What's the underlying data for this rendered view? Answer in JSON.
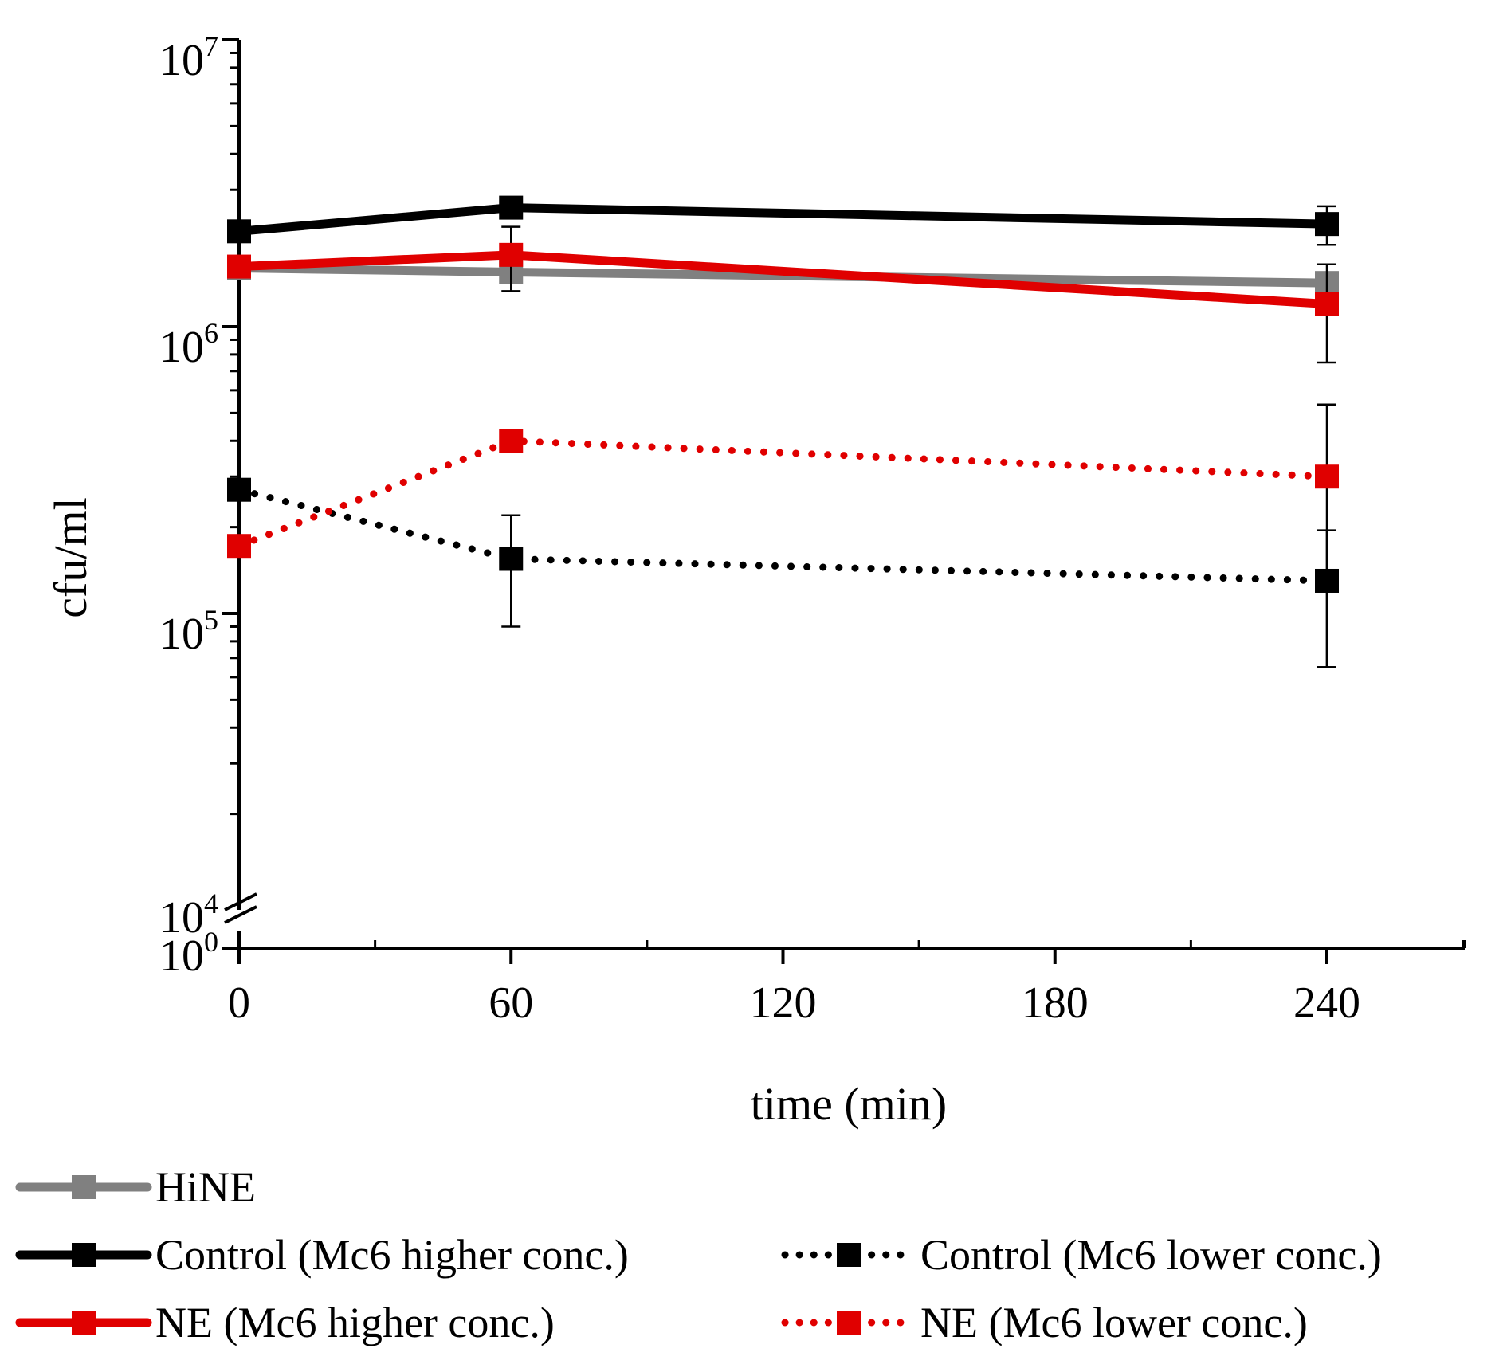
{
  "chart_data": {
    "type": "line",
    "title": "",
    "xlabel": "time (min)",
    "ylabel": "cfu/ml",
    "yscale": "log",
    "xlim": [
      0,
      270
    ],
    "ylim": [
      10000,
      10000000
    ],
    "axis_break": {
      "lower_tick": "10^0",
      "upper_tick": "10^4"
    },
    "x_ticks": [
      0,
      60,
      120,
      180,
      240
    ],
    "x_tick_labels": [
      "0",
      "60",
      "120",
      "180",
      "240"
    ],
    "y_ticks": [
      {
        "value": 100000,
        "base": "10",
        "exp": "5"
      },
      {
        "value": 1000000,
        "base": "10",
        "exp": "6"
      },
      {
        "value": 10000000,
        "base": "10",
        "exp": "7"
      }
    ],
    "y_break_labels": [
      {
        "base": "10",
        "exp": "4"
      },
      {
        "base": "10",
        "exp": "0"
      }
    ],
    "x": [
      0,
      60,
      240
    ],
    "series": [
      {
        "name": "HiNE",
        "color": "#808080",
        "style": "solid",
        "values": [
          1600000,
          1550000,
          1420000
        ],
        "err": [
          null,
          80000,
          60000
        ]
      },
      {
        "name": "Control (Mc6 higher conc.)",
        "color": "#000000",
        "style": "solid",
        "values": [
          2150000,
          2600000,
          2280000
        ],
        "err": [
          null,
          130000,
          350000
        ]
      },
      {
        "name": "NE (Mc6 higher conc.)",
        "color": "#e00000",
        "style": "solid",
        "values": [
          1620000,
          1780000,
          1200000
        ],
        "err": [
          null,
          450000,
          450000
        ]
      },
      {
        "name": "Control (Mc6 lower conc.)",
        "color": "#000000",
        "style": "dotted",
        "values": [
          270000,
          155000,
          130000
        ],
        "err": [
          null,
          65000,
          65000
        ]
      },
      {
        "name": "NE (Mc6 lower conc.)",
        "color": "#e00000",
        "style": "dotted",
        "values": [
          172000,
          400000,
          300000
        ],
        "err": [
          null,
          20000,
          235000
        ]
      }
    ],
    "legend_placement": "bottom"
  }
}
